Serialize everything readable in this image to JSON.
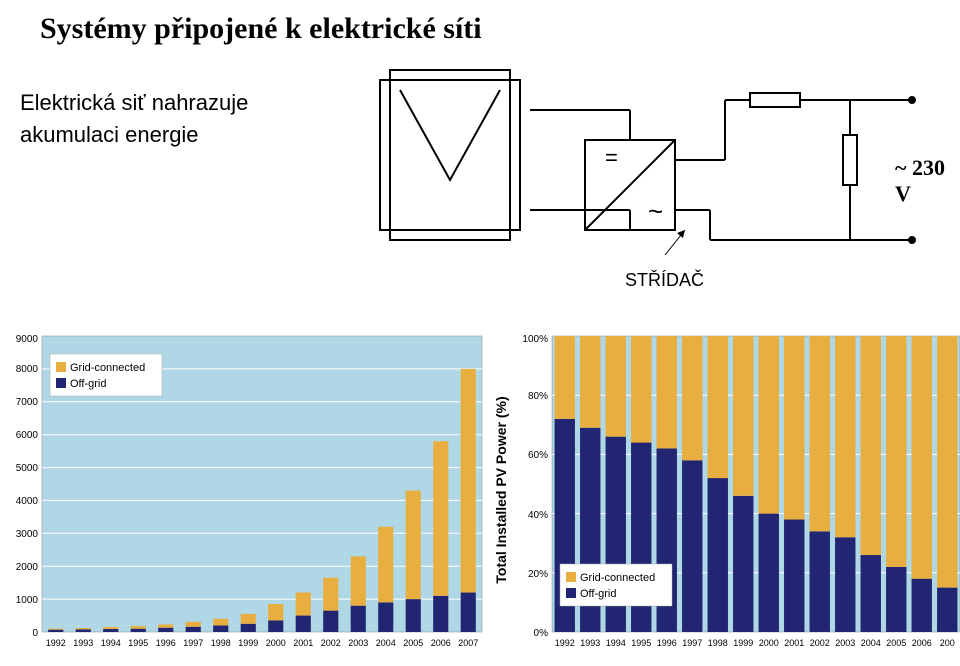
{
  "title": "Systémy připojené k elektrické síti",
  "sub1": "Elektrická siť nahrazuje",
  "sub2": "akumulaci energie",
  "voltage": "~ 230 V",
  "inverter_label": "STŘÍDAČ",
  "diagram": {
    "line_color": "#000000",
    "line_width": 2
  },
  "chart_left": {
    "type": "bar",
    "ymax": 9000,
    "ytick_step": 1000,
    "background_color": "#afd7e5",
    "grid_color": "#ffffff",
    "bar_width": 0.55,
    "categories": [
      "1992",
      "1993",
      "1994",
      "1995",
      "1996",
      "1997",
      "1998",
      "1999",
      "2000",
      "2001",
      "2002",
      "2003",
      "2004",
      "2005",
      "2006",
      "2007"
    ],
    "series": [
      {
        "name": "Off-grid",
        "color": "#222571",
        "values": [
          70,
          80,
          90,
          100,
          130,
          160,
          200,
          250,
          350,
          500,
          650,
          800,
          900,
          1000,
          1100,
          1200
        ]
      },
      {
        "name": "Grid-connected",
        "color": "#e8ae3f",
        "values": [
          30,
          40,
          60,
          80,
          100,
          150,
          200,
          300,
          500,
          700,
          1000,
          1500,
          2300,
          3300,
          4700,
          6800
        ]
      }
    ],
    "legend_position": "top-left"
  },
  "chart_right": {
    "type": "bar",
    "ymax": 1.0,
    "ytick_step": 0.2,
    "background_color": "#afd7e5",
    "grid_color": "#ffffff",
    "ylabel": "Total Installed PV Power (%)",
    "bar_width": 0.8,
    "categories": [
      "1992",
      "1993",
      "1994",
      "1995",
      "1996",
      "1997",
      "1998",
      "1999",
      "2000",
      "2001",
      "2002",
      "2003",
      "2004",
      "2005",
      "2006",
      "200"
    ],
    "series": [
      {
        "name": "Off-grid",
        "color": "#222571",
        "values_pct": [
          0.72,
          0.69,
          0.66,
          0.64,
          0.62,
          0.58,
          0.52,
          0.46,
          0.4,
          0.38,
          0.34,
          0.32,
          0.26,
          0.22,
          0.18,
          0.15
        ]
      },
      {
        "name": "Grid-connected",
        "color": "#e8ae3f",
        "values_pct": [
          0.28,
          0.31,
          0.34,
          0.36,
          0.38,
          0.42,
          0.48,
          0.54,
          0.6,
          0.62,
          0.66,
          0.68,
          0.74,
          0.78,
          0.82,
          0.85
        ]
      }
    ],
    "legend_position": "bottom-left"
  }
}
